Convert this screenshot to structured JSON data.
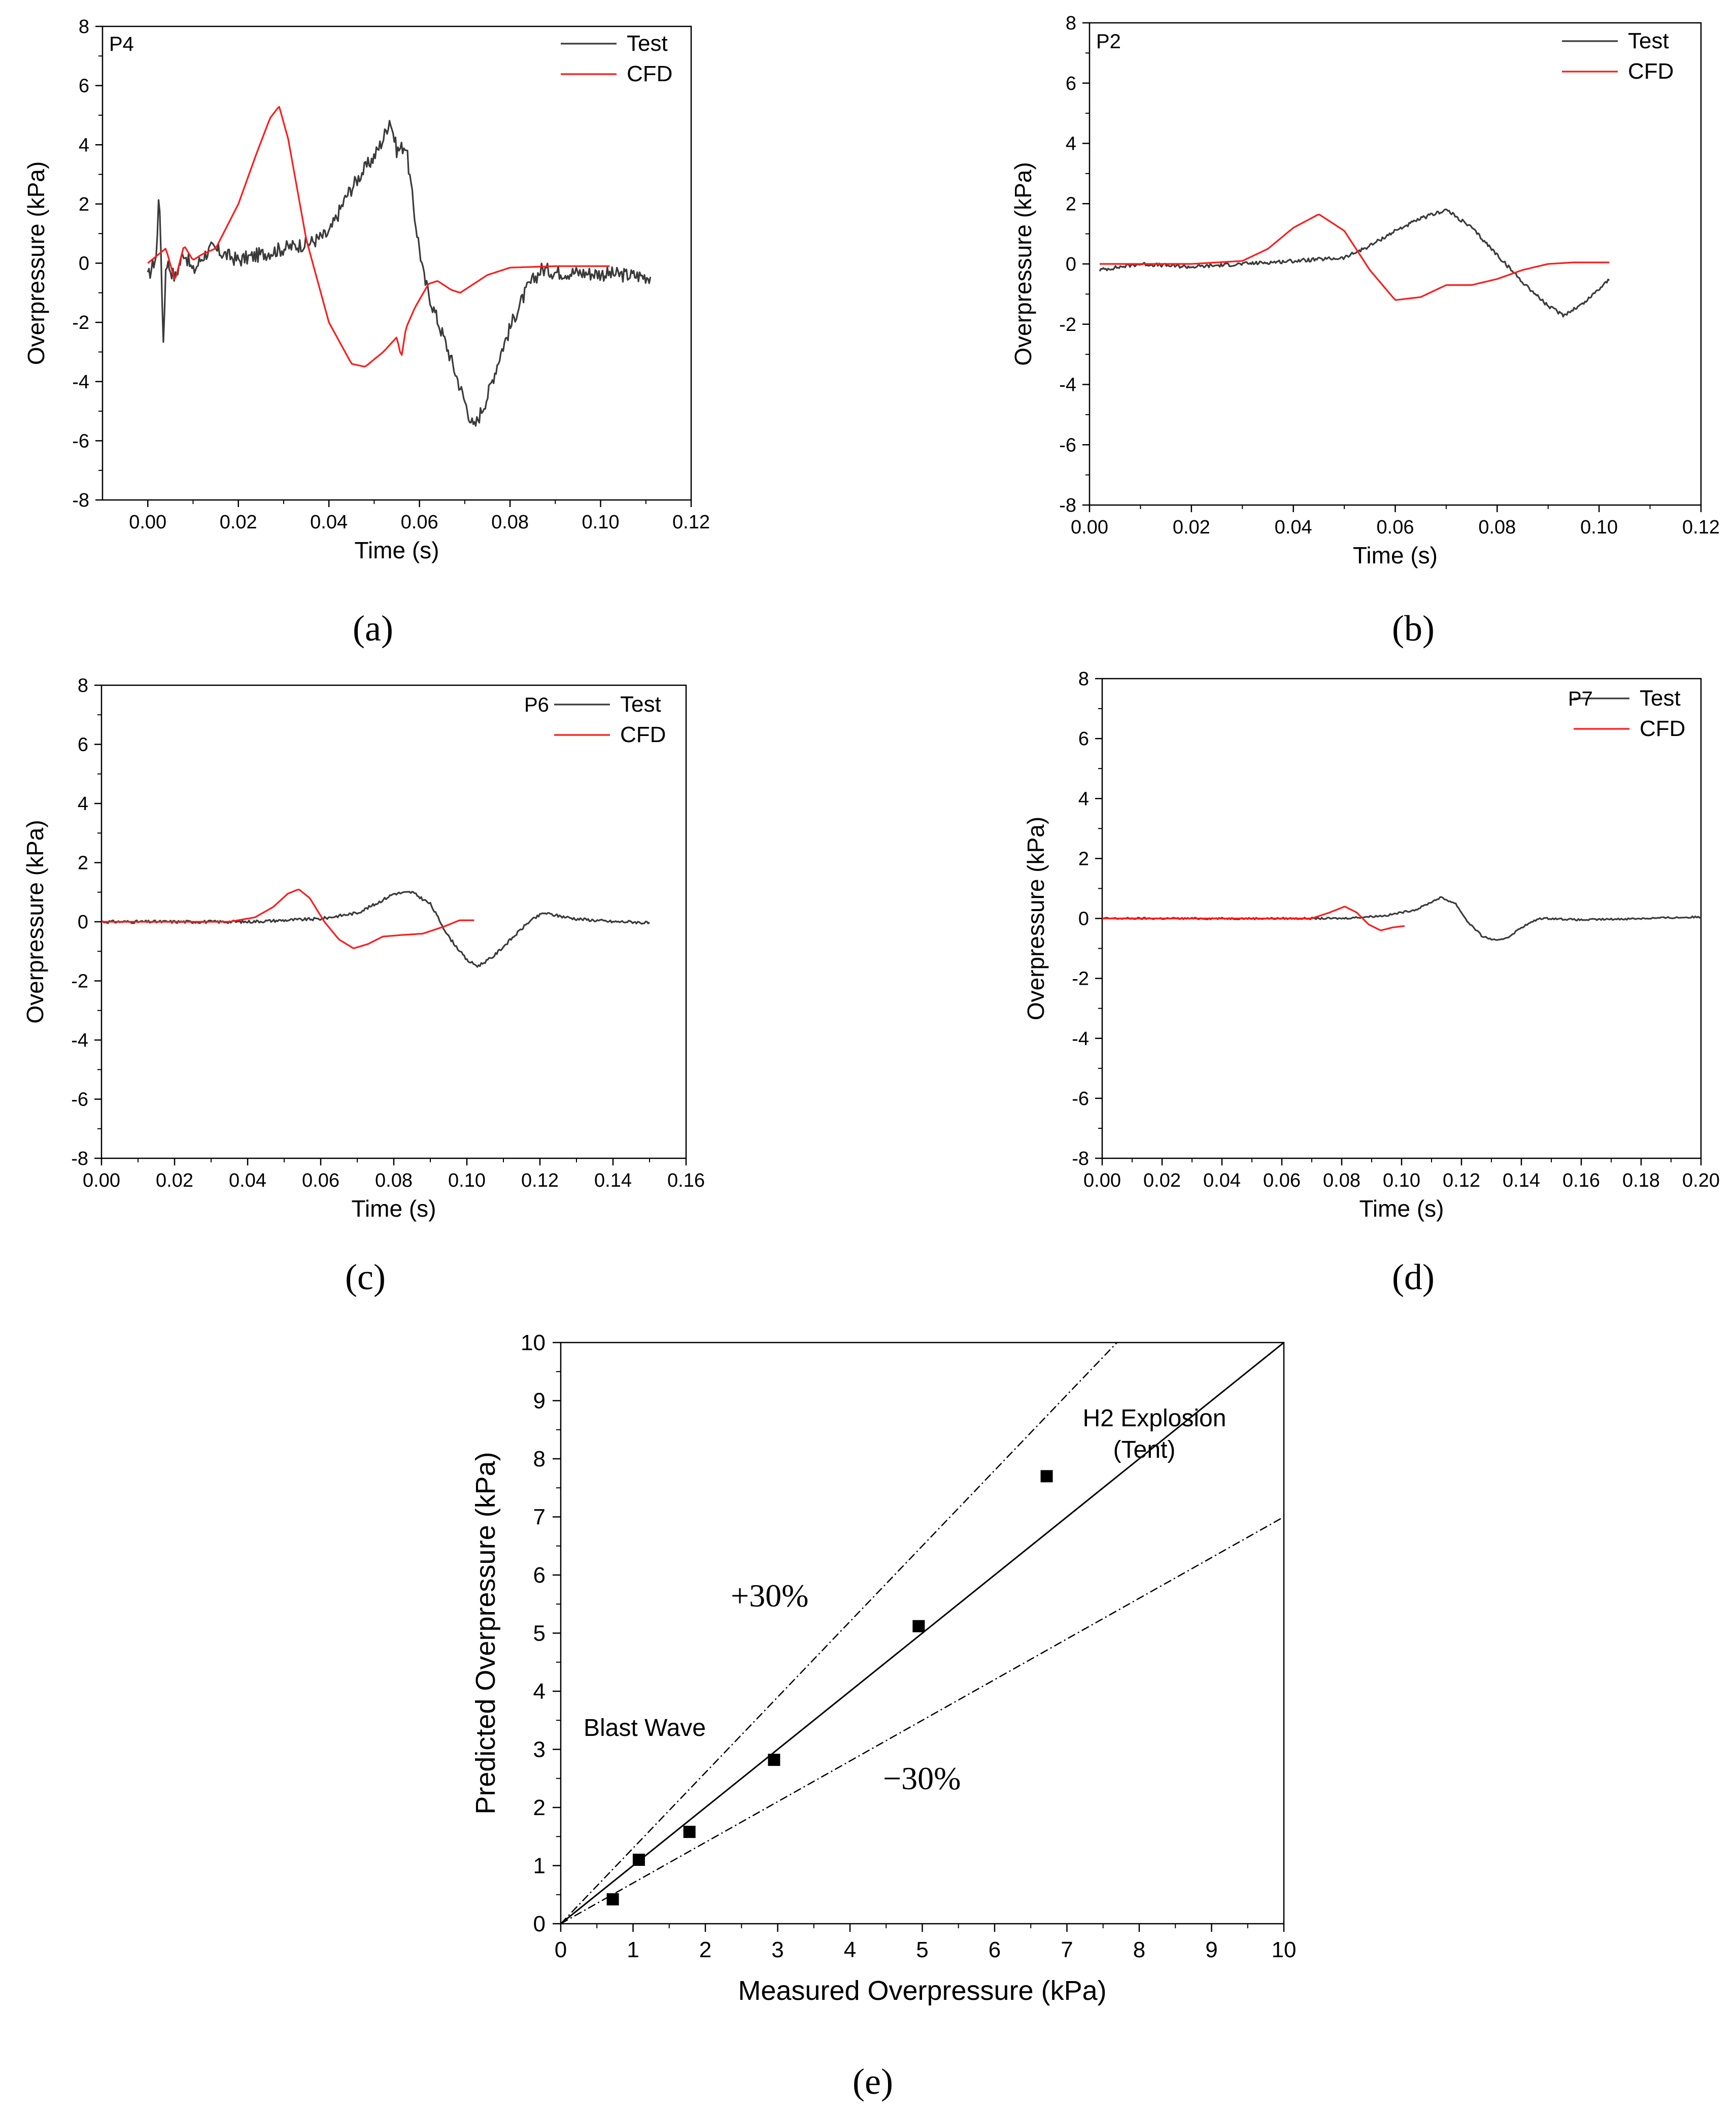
{
  "colors": {
    "test": "#3a3a3a",
    "cfd": "#ff1a1a",
    "axis": "#000000"
  },
  "chart_data": [
    {
      "id": "a",
      "caption": "(a)",
      "type": "line",
      "probe": "P4",
      "xlabel": "Time (s)",
      "ylabel": "Overpressure (kPa)",
      "xlim": [
        -0.01,
        0.12
      ],
      "ylim": [
        -8,
        8
      ],
      "xticks": [
        0.0,
        0.02,
        0.04,
        0.06,
        0.08,
        0.1,
        0.12
      ],
      "xtick_labels": [
        "0.00",
        "0.02",
        "0.04",
        "0.06",
        "0.08",
        "0.10",
        "0.12"
      ],
      "yticks": [
        -8,
        -6,
        -4,
        -2,
        0,
        2,
        4,
        6,
        8
      ],
      "ytick_labels": [
        "-8",
        "-6",
        "-4",
        "-2",
        "0",
        "2",
        "4",
        "6",
        "8"
      ],
      "legend": [
        "Test",
        "CFD"
      ],
      "series": [
        {
          "name": "Test",
          "noise": 0.25,
          "x": [
            0.0,
            0.002,
            0.0025,
            0.003,
            0.0035,
            0.004,
            0.006,
            0.008,
            0.01,
            0.012,
            0.014,
            0.02,
            0.03,
            0.036,
            0.04,
            0.044,
            0.047,
            0.05,
            0.052,
            0.0535,
            0.055,
            0.057,
            0.059,
            0.061,
            0.063,
            0.066,
            0.069,
            0.072,
            0.075,
            0.078,
            0.081,
            0.084,
            0.087,
            0.09,
            0.1,
            0.111
          ],
          "y": [
            -0.5,
            0.3,
            2.9,
            -0.5,
            -2.8,
            0.1,
            -0.5,
            0.4,
            -0.3,
            0.2,
            0.5,
            0.1,
            0.5,
            0.7,
            1.0,
            2.3,
            3.0,
            3.6,
            4.2,
            4.9,
            3.8,
            4.0,
            1.5,
            -0.5,
            -1.5,
            -2.8,
            -4.2,
            -5.6,
            -4.5,
            -3.0,
            -1.8,
            -0.8,
            -0.2,
            -0.3,
            -0.35,
            -0.45
          ]
        },
        {
          "name": "CFD",
          "noise": 0.0,
          "x": [
            0.0,
            0.004,
            0.006,
            0.008,
            0.01,
            0.012,
            0.015,
            0.02,
            0.024,
            0.027,
            0.029,
            0.031,
            0.035,
            0.04,
            0.045,
            0.048,
            0.052,
            0.055,
            0.056,
            0.057,
            0.059,
            0.062,
            0.064,
            0.067,
            0.069,
            0.071,
            0.075,
            0.08,
            0.09,
            0.1,
            0.102
          ],
          "y": [
            0.0,
            0.5,
            -0.6,
            0.6,
            0.1,
            0.3,
            0.5,
            2.0,
            3.7,
            4.9,
            5.3,
            4.2,
            0.8,
            -2.0,
            -3.4,
            -3.5,
            -3.0,
            -2.5,
            -3.2,
            -2.2,
            -1.5,
            -0.7,
            -0.6,
            -0.9,
            -1.0,
            -0.8,
            -0.4,
            -0.15,
            -0.1,
            -0.1,
            -0.1
          ]
        }
      ]
    },
    {
      "id": "b",
      "caption": "(b)",
      "type": "line",
      "probe": "P2",
      "xlabel": "Time (s)",
      "ylabel": "Overpressure (kPa)",
      "xlim": [
        0.0,
        0.12
      ],
      "ylim": [
        -8,
        8
      ],
      "xticks": [
        0.0,
        0.02,
        0.04,
        0.06,
        0.08,
        0.1,
        0.12
      ],
      "xtick_labels": [
        "0.00",
        "0.02",
        "0.04",
        "0.06",
        "0.08",
        "0.10",
        "0.12"
      ],
      "yticks": [
        -8,
        -6,
        -4,
        -2,
        0,
        2,
        4,
        6,
        8
      ],
      "ytick_labels": [
        "-8",
        "-6",
        "-4",
        "-2",
        "0",
        "2",
        "4",
        "6",
        "8"
      ],
      "legend": [
        "Test",
        "CFD"
      ],
      "series": [
        {
          "name": "Test",
          "noise": 0.06,
          "x": [
            0.002,
            0.01,
            0.02,
            0.03,
            0.04,
            0.05,
            0.055,
            0.06,
            0.065,
            0.07,
            0.075,
            0.08,
            0.085,
            0.09,
            0.093,
            0.097,
            0.102
          ],
          "y": [
            -0.2,
            0.0,
            -0.1,
            0.0,
            0.1,
            0.2,
            0.6,
            1.1,
            1.5,
            1.8,
            1.2,
            0.3,
            -0.6,
            -1.4,
            -1.7,
            -1.3,
            -0.5
          ]
        },
        {
          "name": "CFD",
          "noise": 0.0,
          "x": [
            0.002,
            0.02,
            0.03,
            0.035,
            0.04,
            0.045,
            0.05,
            0.055,
            0.06,
            0.065,
            0.07,
            0.075,
            0.08,
            0.085,
            0.09,
            0.095,
            0.102
          ],
          "y": [
            0.0,
            0.0,
            0.1,
            0.5,
            1.2,
            1.65,
            1.1,
            -0.2,
            -1.2,
            -1.1,
            -0.7,
            -0.7,
            -0.5,
            -0.2,
            0.0,
            0.05,
            0.05
          ]
        }
      ]
    },
    {
      "id": "c",
      "caption": "(c)",
      "type": "line",
      "probe": "P6",
      "xlabel": "Time (s)",
      "ylabel": "Overpressure (kPa)",
      "xlim": [
        0.0,
        0.16
      ],
      "ylim": [
        -8,
        8
      ],
      "xticks": [
        0.0,
        0.02,
        0.04,
        0.06,
        0.08,
        0.1,
        0.12,
        0.14,
        0.16
      ],
      "xtick_labels": [
        "0.00",
        "0.02",
        "0.04",
        "0.06",
        "0.08",
        "0.10",
        "0.12",
        "0.14",
        "0.16"
      ],
      "yticks": [
        -8,
        -6,
        -4,
        -2,
        0,
        2,
        4,
        6,
        8
      ],
      "ytick_labels": [
        "-8",
        "-6",
        "-4",
        "-2",
        "0",
        "2",
        "4",
        "6",
        "8"
      ],
      "legend": [
        "Test",
        "CFD"
      ],
      "series": [
        {
          "name": "Test",
          "noise": 0.05,
          "x": [
            0.0,
            0.04,
            0.05,
            0.06,
            0.07,
            0.075,
            0.08,
            0.085,
            0.09,
            0.095,
            0.1,
            0.103,
            0.107,
            0.112,
            0.117,
            0.121,
            0.125,
            0.13,
            0.135,
            0.14,
            0.145,
            0.15
          ],
          "y": [
            0.0,
            0.0,
            0.05,
            0.1,
            0.3,
            0.6,
            0.95,
            1.0,
            0.6,
            -0.5,
            -1.3,
            -1.5,
            -1.2,
            -0.6,
            0.0,
            0.3,
            0.2,
            0.1,
            0.05,
            0.0,
            0.0,
            -0.05
          ]
        },
        {
          "name": "CFD",
          "noise": 0.0,
          "x": [
            0.0,
            0.035,
            0.042,
            0.047,
            0.051,
            0.054,
            0.057,
            0.061,
            0.065,
            0.069,
            0.073,
            0.077,
            0.082,
            0.088,
            0.094,
            0.098,
            0.102
          ],
          "y": [
            0.0,
            0.0,
            0.15,
            0.5,
            0.95,
            1.1,
            0.8,
            0.0,
            -0.6,
            -0.9,
            -0.75,
            -0.5,
            -0.45,
            -0.4,
            -0.15,
            0.05,
            0.05
          ]
        }
      ]
    },
    {
      "id": "d",
      "caption": "(d)",
      "type": "line",
      "probe": "P7",
      "xlabel": "Time (s)",
      "ylabel": "Overpressure (kPa)",
      "xlim": [
        0.0,
        0.2
      ],
      "ylim": [
        -8,
        8
      ],
      "xticks": [
        0.0,
        0.02,
        0.04,
        0.06,
        0.08,
        0.1,
        0.12,
        0.14,
        0.16,
        0.18,
        0.2
      ],
      "xtick_labels": [
        "0.00",
        "0.02",
        "0.04",
        "0.06",
        "0.08",
        "0.10",
        "0.12",
        "0.14",
        "0.16",
        "0.18",
        "0.20"
      ],
      "yticks": [
        -8,
        -6,
        -4,
        -2,
        0,
        2,
        4,
        6,
        8
      ],
      "ytick_labels": [
        "-8",
        "-6",
        "-4",
        "-2",
        "0",
        "2",
        "4",
        "6",
        "8"
      ],
      "legend": [
        "Test",
        "CFD"
      ],
      "series": [
        {
          "name": "Test",
          "noise": 0.03,
          "x": [
            0.0,
            0.08,
            0.095,
            0.105,
            0.113,
            0.118,
            0.122,
            0.127,
            0.132,
            0.136,
            0.14,
            0.146,
            0.15,
            0.16,
            0.18,
            0.2
          ],
          "y": [
            0.0,
            0.0,
            0.1,
            0.3,
            0.7,
            0.5,
            -0.1,
            -0.6,
            -0.75,
            -0.6,
            -0.3,
            0.0,
            0.0,
            -0.05,
            0.0,
            0.05
          ]
        },
        {
          "name": "CFD",
          "noise": 0.0,
          "x": [
            0.0,
            0.07,
            0.076,
            0.081,
            0.085,
            0.089,
            0.093,
            0.097,
            0.101
          ],
          "y": [
            0.0,
            0.0,
            0.2,
            0.4,
            0.2,
            -0.2,
            -0.4,
            -0.3,
            -0.25
          ]
        }
      ]
    },
    {
      "id": "e",
      "caption": "(e)",
      "type": "scatter",
      "xlabel": "Measured Overpressure (kPa)",
      "ylabel": "Predicted Overpressure (kPa)",
      "xlim": [
        0,
        10
      ],
      "ylim": [
        0,
        10
      ],
      "xticks": [
        0,
        1,
        2,
        3,
        4,
        5,
        6,
        7,
        8,
        9,
        10
      ],
      "xtick_labels": [
        "0",
        "1",
        "2",
        "3",
        "4",
        "5",
        "6",
        "7",
        "8",
        "9",
        "10"
      ],
      "yticks": [
        0,
        1,
        2,
        3,
        4,
        5,
        6,
        7,
        8,
        9,
        10
      ],
      "ytick_labels": [
        "0",
        "1",
        "2",
        "3",
        "4",
        "5",
        "6",
        "7",
        "8",
        "9",
        "10"
      ],
      "points": {
        "x": [
          0.72,
          1.08,
          1.78,
          2.95,
          4.95,
          6.72
        ],
        "y": [
          0.42,
          1.1,
          1.58,
          2.82,
          5.12,
          7.7
        ]
      },
      "reference_lines": [
        {
          "name": "y = x",
          "slope": 1.0,
          "style": "solid"
        },
        {
          "name": "+30%",
          "slope": 1.3,
          "style": "dashdot"
        },
        {
          "name": "-30%",
          "slope": 0.7,
          "style": "dashdot"
        }
      ],
      "annotations": {
        "plus30": "+30%",
        "minus30": "−30%",
        "blast_wave": "Blast Wave",
        "h2_line1": "H2 Explosion",
        "h2_line2": "(Tent)"
      }
    }
  ]
}
